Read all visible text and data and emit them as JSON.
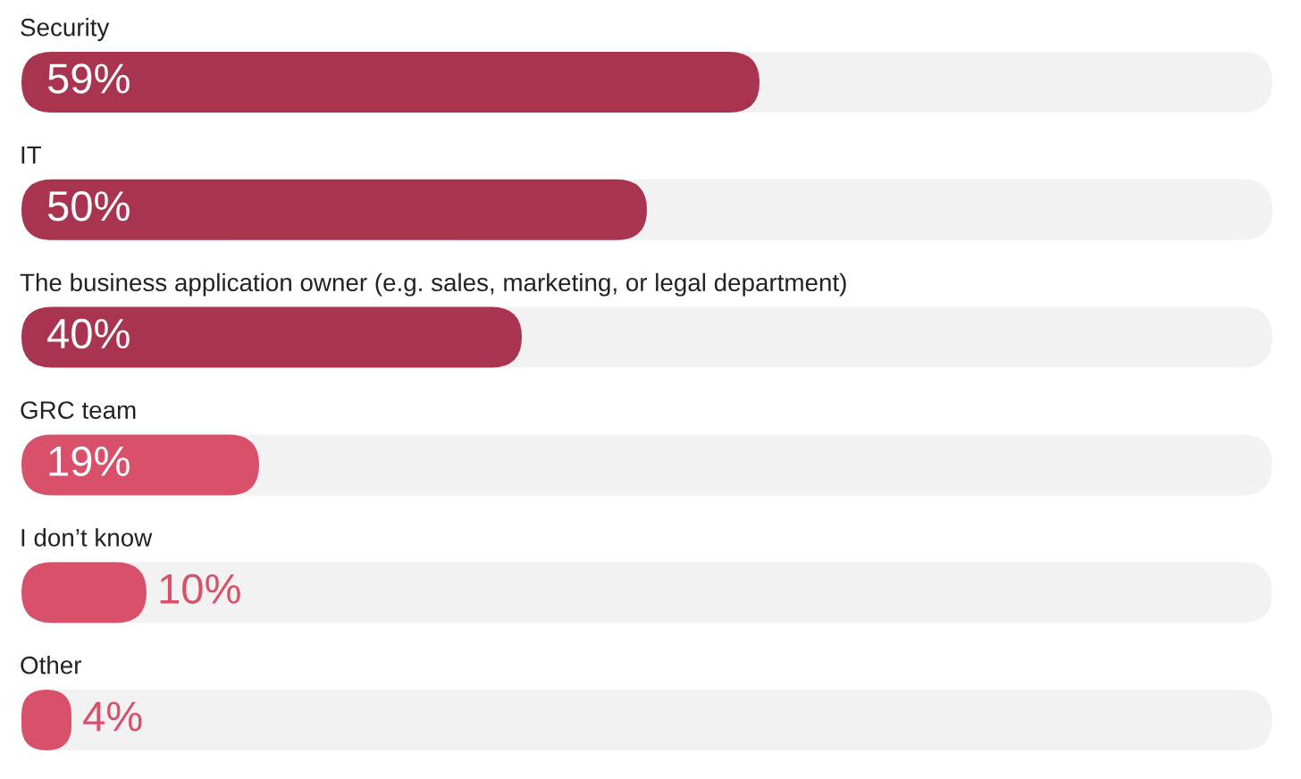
{
  "chart_data": {
    "type": "bar",
    "orientation": "horizontal",
    "relative": false,
    "categories": [
      "Security",
      "IT",
      "The business application owner (e.g. sales, marketing, or legal department)",
      "GRC team",
      "I don’t know",
      "Other"
    ],
    "values": [
      59,
      50,
      40,
      19,
      10,
      4
    ],
    "value_labels": [
      "59%",
      "50%",
      "40%",
      "19%",
      "10%",
      "4%"
    ],
    "colors": [
      "#a8344f",
      "#a8344f",
      "#a8344f",
      "#d9506b",
      "#d9506b",
      "#d9506b"
    ],
    "xlim": [
      0,
      100
    ],
    "tick_labels": false
  }
}
